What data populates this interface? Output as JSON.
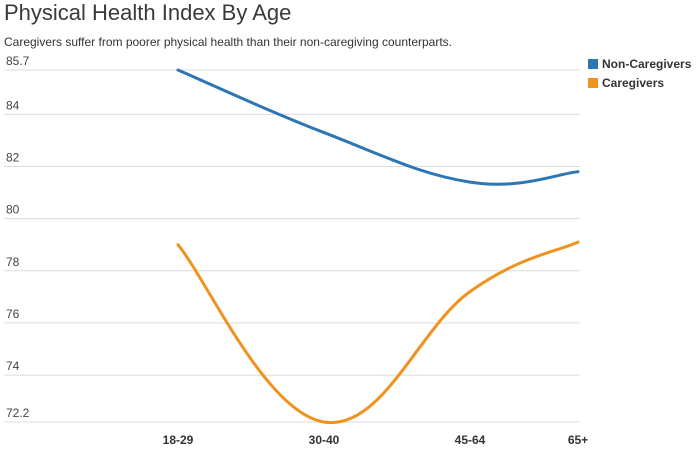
{
  "chart_data": {
    "type": "line",
    "title": "Physical Health Index By Age",
    "subtitle": "Caregivers suffer from poorer physical health than their non-caregiving counterparts.",
    "xlabel": "",
    "ylabel": "",
    "categories": [
      "18-29",
      "30-40",
      "45-64",
      "65+"
    ],
    "series": [
      {
        "name": "Non-Caregivers",
        "color": "#2e75b6",
        "values": [
          85.7,
          83.3,
          81.4,
          81.8
        ]
      },
      {
        "name": "Caregivers",
        "color": "#f0921e",
        "values": [
          79.0,
          72.2,
          77.2,
          79.1
        ]
      }
    ],
    "ylim": [
      72.2,
      85.7
    ],
    "yticks": [
      "85.7",
      "84",
      "82",
      "80",
      "78",
      "76",
      "74",
      "72.2"
    ],
    "grid": true,
    "legend_position": "top-right"
  }
}
